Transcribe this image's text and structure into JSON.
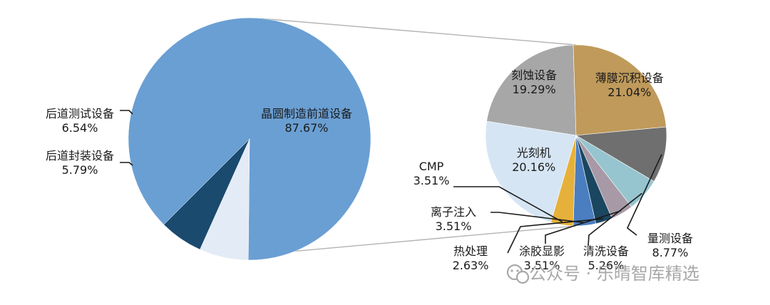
{
  "chart_data": [
    {
      "type": "pie",
      "slices": [
        {
          "name": "晶圆制造前道设备",
          "value": 87.67,
          "value_label": "87.67%",
          "color": "#6a9fd3"
        },
        {
          "name": "后道测试设备",
          "value": 6.54,
          "value_label": "6.54%",
          "color": "#e3ebf6"
        },
        {
          "name": "后道封装设备",
          "value": 5.79,
          "value_label": "5.79%",
          "color": "#1a4a6e"
        }
      ]
    },
    {
      "type": "pie",
      "slices": [
        {
          "name": "刻蚀设备",
          "value": 19.29,
          "value_label": "19.29%",
          "color": "#a7a7a7"
        },
        {
          "name": "薄膜沉积设备",
          "value": 21.04,
          "value_label": "21.04%",
          "color": "#bf9a5b"
        },
        {
          "name": "量测设备",
          "value": 8.77,
          "value_label": "8.77%",
          "color": "#6f6f6f"
        },
        {
          "name": "清洗设备",
          "value": 5.26,
          "value_label": "5.26%",
          "color": "#96c4cf"
        },
        {
          "name": "涂胶显影",
          "value": 3.51,
          "value_label": "3.51%",
          "color": "#a79aa6"
        },
        {
          "name": "热处理",
          "value": 2.63,
          "value_label": "2.63%",
          "color": "#1b4660"
        },
        {
          "name": "离子注入",
          "value": 3.51,
          "value_label": "3.51%",
          "color": "#4a7ec0"
        },
        {
          "name": "CMP",
          "value": 3.51,
          "value_label": "3.51%",
          "color": "#e6b13a"
        },
        {
          "name": "光刻机",
          "value": 20.16,
          "value_label": "20.16%",
          "color": "#d6e5f4"
        }
      ]
    }
  ],
  "watermark": {
    "text": "公众号 · 乐晴智库精选",
    "icon": "wechat-icon"
  },
  "colors": {
    "connector": "#b3b3b3",
    "leader": "#1a1a1a"
  }
}
